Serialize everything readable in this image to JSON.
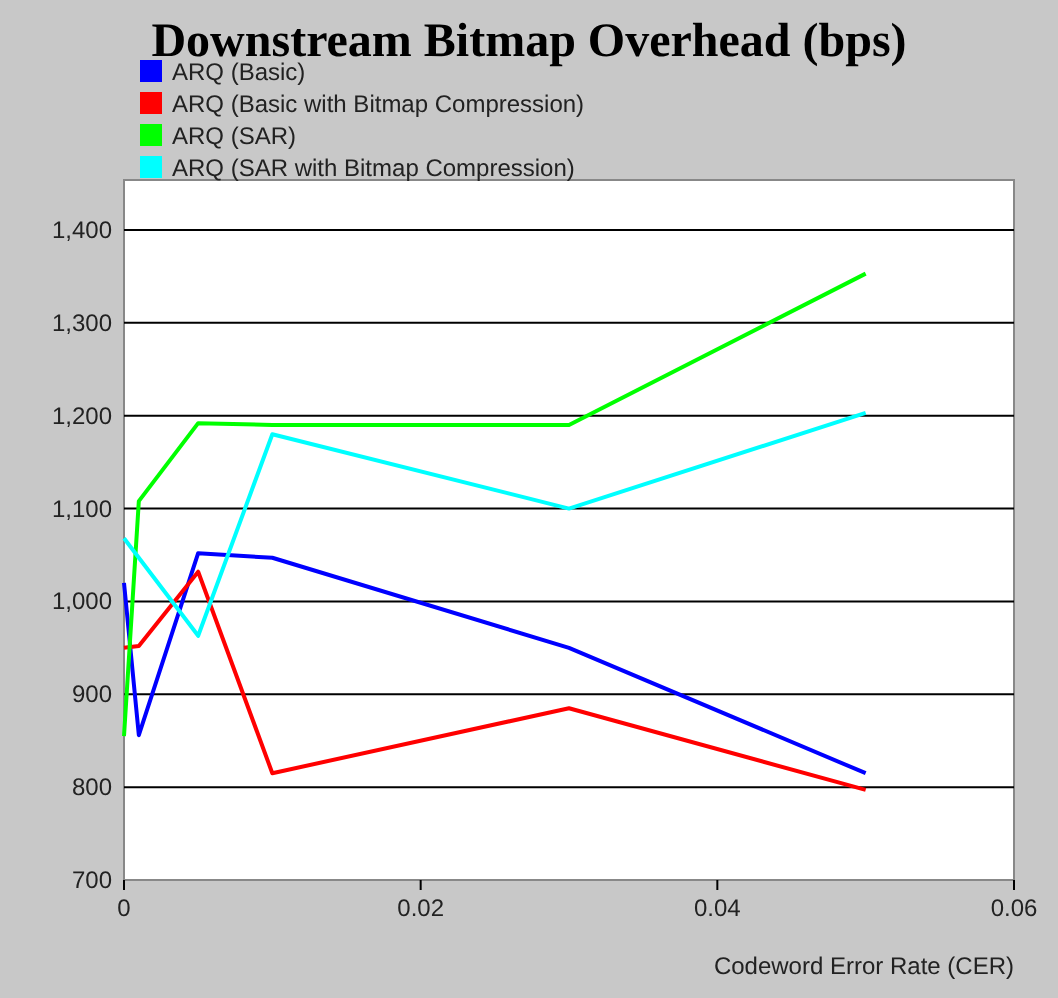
{
  "chart_data": {
    "type": "line",
    "title": "Downstream Bitmap Overhead (bps)",
    "xlabel": "Codeword Error Rate (CER)",
    "x": [
      0,
      0.001,
      0.005,
      0.01,
      0.03,
      0.05
    ],
    "series": [
      {
        "name": "ARQ (Basic)",
        "color": "#0000ff",
        "values": [
          1020,
          856,
          1052,
          1047,
          950,
          815
        ]
      },
      {
        "name": "ARQ (Basic with Bitmap Compression)",
        "color": "#ff0000",
        "values": [
          950,
          952,
          1032,
          815,
          885,
          797
        ]
      },
      {
        "name": "ARQ (SAR)",
        "color": "#00ff00",
        "values": [
          855,
          1108,
          1192,
          1190,
          1190,
          1353
        ]
      },
      {
        "name": "ARQ (SAR with Bitmap Compression)",
        "color": "#00ffff",
        "x": [
          0,
          0.005,
          0.01,
          0.03,
          0.05
        ],
        "values": [
          1068,
          963,
          1180,
          1100,
          1203
        ]
      }
    ],
    "xlim": [
      0,
      0.06
    ],
    "xticks": [
      0,
      0.02,
      0.04,
      0.06
    ],
    "ylim": [
      700,
      1400
    ],
    "yticks": [
      {
        "value": 700,
        "label": "700"
      },
      {
        "value": 800,
        "label": "800"
      },
      {
        "value": 900,
        "label": "900"
      },
      {
        "value": 1000,
        "label": "1,000"
      },
      {
        "value": 1100,
        "label": "1,100"
      },
      {
        "value": 1200,
        "label": "1,200"
      },
      {
        "value": 1300,
        "label": "1,300"
      },
      {
        "value": 1400,
        "label": "1,400"
      }
    ],
    "grid": "y",
    "legend": "top left",
    "marker": "none",
    "line_style": "solid"
  }
}
